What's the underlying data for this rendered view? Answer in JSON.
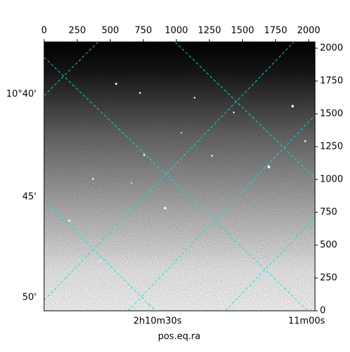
{
  "chart_data": {
    "type": "image",
    "xlabel": "pos.eq.ra",
    "xlim": [
      0,
      2048
    ],
    "xticks": [
      0,
      250,
      500,
      750,
      1000,
      1250,
      1500,
      1750,
      2000
    ],
    "ylim": [
      0,
      2048
    ],
    "yticks": [
      0,
      250,
      500,
      750,
      1000,
      1250,
      1500,
      1750,
      2000
    ],
    "ra_labels": [
      "2h10m30s",
      "11m00s"
    ],
    "dec_labels": [
      "10°40'",
      "45'",
      "50'"
    ],
    "grid_color": "#00e5e5"
  }
}
